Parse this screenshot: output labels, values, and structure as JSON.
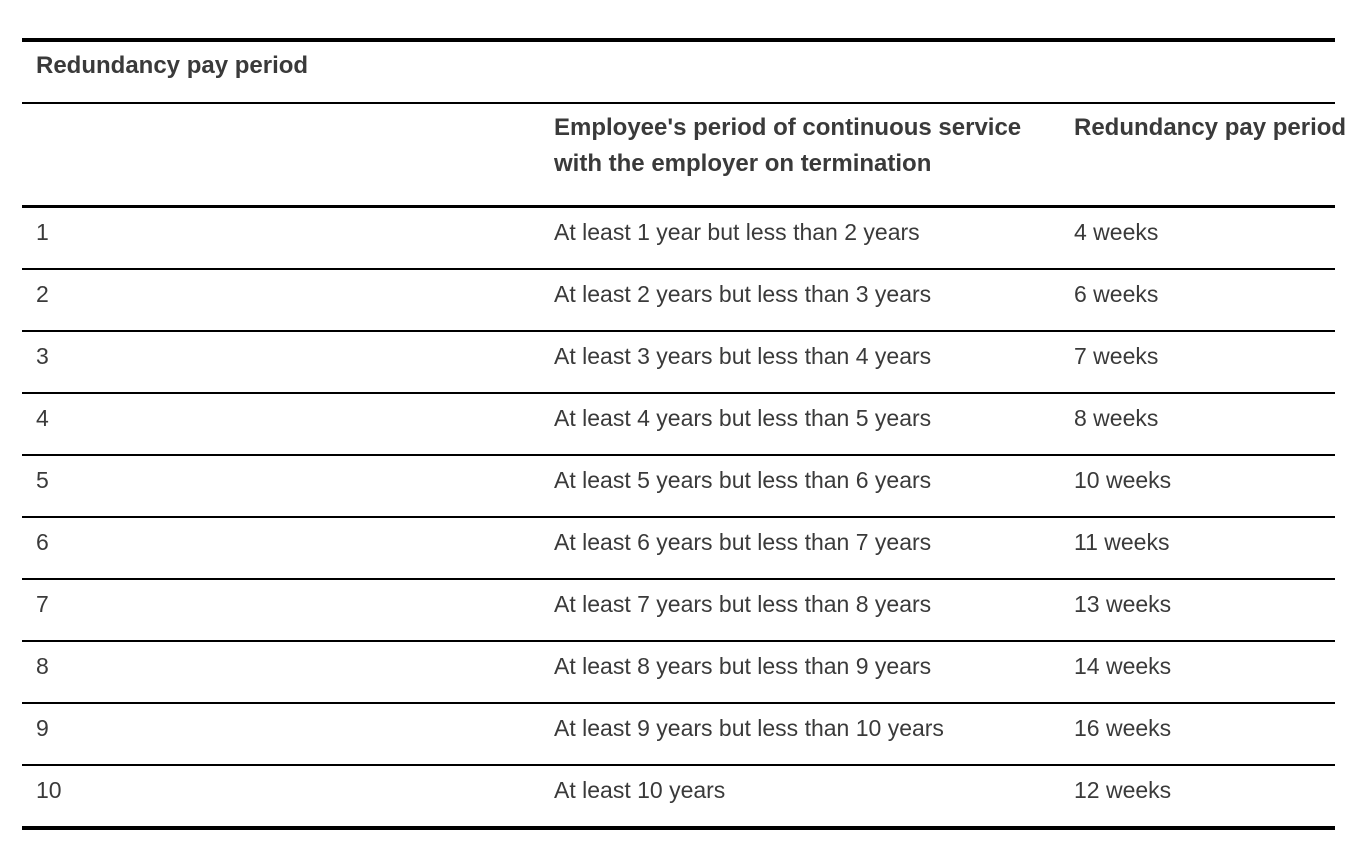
{
  "page": {
    "background": "#ffffff",
    "text_color": "#3a3a3a",
    "rule_color": "#000000"
  },
  "table": {
    "caption": "Redundancy pay period",
    "headers": {
      "num": "",
      "service": "Employee's period of continuous service with the employer on termination",
      "pay": "Redundancy pay period"
    },
    "rows": [
      {
        "num": "1",
        "service": "At least 1 year but less than 2 years",
        "pay": "4 weeks"
      },
      {
        "num": "2",
        "service": "At least 2 years but less than 3 years",
        "pay": "6 weeks"
      },
      {
        "num": "3",
        "service": "At least 3 years but less than 4 years",
        "pay": "7 weeks"
      },
      {
        "num": "4",
        "service": "At least 4 years but less than 5 years",
        "pay": "8 weeks"
      },
      {
        "num": "5",
        "service": "At least 5 years but less than 6 years",
        "pay": "10 weeks"
      },
      {
        "num": "6",
        "service": "At least 6 years but less than 7 years",
        "pay": "11 weeks"
      },
      {
        "num": "7",
        "service": "At least 7 years but less than 8 years",
        "pay": "13 weeks"
      },
      {
        "num": "8",
        "service": "At least 8 years but less than 9 years",
        "pay": "14 weeks"
      },
      {
        "num": "9",
        "service": "At least 9 years but less than 10 years",
        "pay": "16 weeks"
      },
      {
        "num": "10",
        "service": "At least 10 years",
        "pay": "12 weeks"
      }
    ]
  }
}
